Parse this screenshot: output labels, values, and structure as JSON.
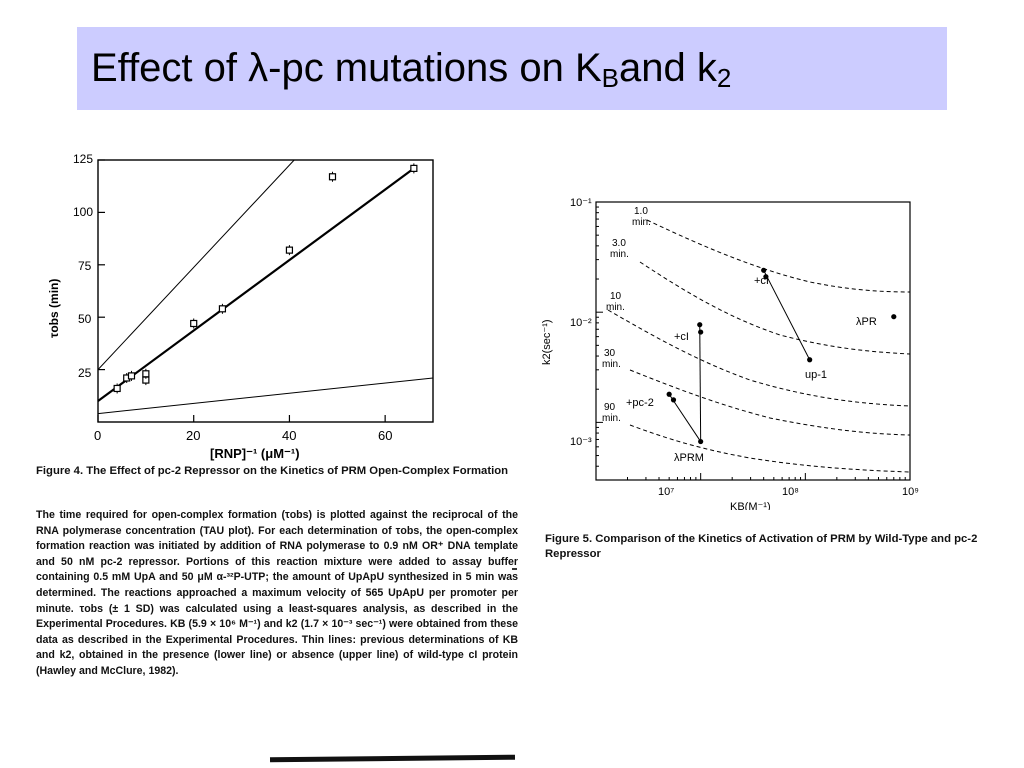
{
  "slide": {
    "title_main": "Effect of  λ-pc mutations on K",
    "title_sub1": "B",
    "title_mid": " and k",
    "title_sub2": "2"
  },
  "figure4": {
    "caption_title": "Figure 4.  The Effect of pc-2 Repressor on the Kinetics of PRM Open-Complex Formation",
    "caption_body": "The time required for open-complex formation (τobs) is plotted against the reciprocal of the RNA polymerase concentration (TAU plot). For each determination of τobs, the open-complex formation reaction was initiated by addition of RNA polymerase to 0.9 nM OR⁺ DNA template and 50 nM pc-2 repressor. Portions of this reaction mixture were added to assay buffer containing 0.5 mM UpA and 50 μM α-³²P-UTP; the amount of UpApU synthesized in 5 min was determined. The reactions approached a maximum velocity of 565 UpApU per promoter per minute. τobs (± 1 SD) was calculated using a least-squares analysis, as described in the Experimental Procedures. KB (5.9 × 10⁶ M⁻¹) and k2 (1.7 × 10⁻³ sec⁻¹) were obtained from these data as described in the Experimental Procedures. Thin lines: previous determinations of KB and k2, obtained in the presence (lower line) or absence (upper line) of wild-type cI protein (Hawley and McClure, 1982)."
  },
  "figure5": {
    "caption": "Figure 5.  Comparison of the Kinetics of Activation of PRM by Wild-Type and pc-2 Repressor"
  },
  "chart_data": [
    {
      "type": "scatter",
      "xlabel": "[RNP]⁻¹ (μM⁻¹)",
      "ylabel": "τobs (min)",
      "xlim": [
        0,
        70
      ],
      "ylim": [
        0,
        125
      ],
      "xticks": [
        0,
        20,
        40,
        60
      ],
      "yticks": [
        25,
        50,
        75,
        100,
        125
      ],
      "points": [
        {
          "x": 4,
          "y": 16
        },
        {
          "x": 6,
          "y": 21
        },
        {
          "x": 7,
          "y": 22
        },
        {
          "x": 10,
          "y": 20
        },
        {
          "x": 10,
          "y": 23
        },
        {
          "x": 20,
          "y": 47
        },
        {
          "x": 26,
          "y": 54
        },
        {
          "x": 40,
          "y": 82
        },
        {
          "x": 49,
          "y": 117
        },
        {
          "x": 66,
          "y": 121
        }
      ],
      "fit_line": {
        "x1": 0,
        "y1": 10,
        "x2": 66,
        "y2": 121
      },
      "thin_upper": {
        "x1": 0,
        "y1": 25,
        "x2": 41,
        "y2": 125
      },
      "thin_lower": {
        "x1": 0,
        "y1": 4,
        "x2": 70,
        "y2": 21
      }
    },
    {
      "type": "scatter",
      "xlabel": "KB(M⁻¹)",
      "ylabel": "k2(sec⁻¹)",
      "xscale": "log",
      "yscale": "log",
      "xlim": [
        1000000,
        1000000000
      ],
      "ylim": [
        0.0003,
        0.1
      ],
      "xtick_labels": [
        "10⁷",
        "10⁸",
        "10⁹"
      ],
      "ytick_labels": [
        "10⁻¹",
        "10⁻²",
        "10⁻³"
      ],
      "points": [
        {
          "label": "+cI",
          "x": 40000000,
          "y": 0.024
        },
        {
          "label": "",
          "x": 42000000,
          "y": 0.021
        },
        {
          "label": "up-1",
          "x": 110000000,
          "y": 0.0037
        },
        {
          "label": "λPR",
          "x": 700000000,
          "y": 0.0091
        },
        {
          "label": "+cI",
          "x": 9800000,
          "y": 0.0077
        },
        {
          "label": "",
          "x": 10000000,
          "y": 0.0066
        },
        {
          "label": "λPRM",
          "x": 10000000,
          "y": 0.00067
        },
        {
          "label": "+pc-2",
          "x": 5000000,
          "y": 0.0018
        },
        {
          "label": "",
          "x": 5500000,
          "y": 0.0016
        }
      ],
      "curve_labels": [
        "1.0 min.",
        "3.0 min.",
        "10 min.",
        "30 min.",
        "90 min."
      ]
    }
  ],
  "fig4_text": {
    "x_tick_labels": [
      "0",
      "20",
      "40",
      "60"
    ],
    "y_tick_labels": [
      "25",
      "50",
      "75",
      "100",
      "125"
    ],
    "xlabel": "[RNP]⁻¹ (μM⁻¹)",
    "ylabel": "τobs (min)"
  },
  "fig5_text": {
    "x_tick_labels": [
      "10⁷",
      "10⁸",
      "10⁹"
    ],
    "y_tick_labels": [
      "10⁻¹",
      "10⁻²",
      "10⁻³"
    ],
    "xlabel": "KB(M⁻¹)",
    "ylabel": "k2(sec⁻¹)",
    "curve_1": [
      "1.0",
      "min."
    ],
    "curve_2": [
      "3.0",
      "min."
    ],
    "curve_3": [
      "10",
      "min."
    ],
    "curve_4": [
      "30",
      "min."
    ],
    "curve_5": [
      "90",
      "min."
    ],
    "label_cI_top": "+cI",
    "label_up1": "up-1",
    "label_lPR": "λPR",
    "label_cI_mid": "+cI",
    "label_pc2": "+pc-2",
    "label_lPRM": "λPRM"
  }
}
